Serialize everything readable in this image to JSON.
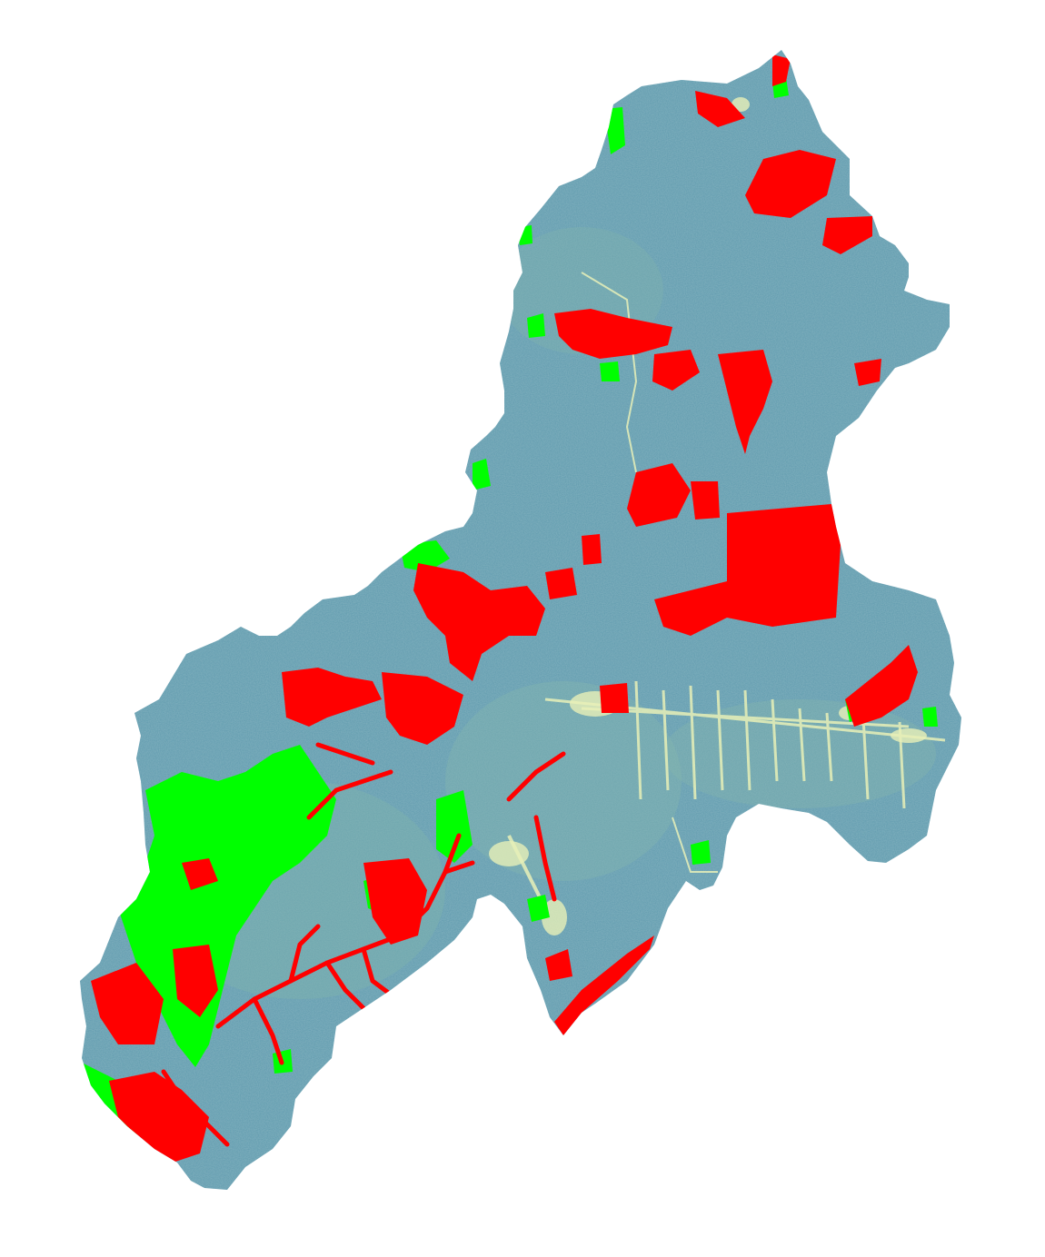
{
  "map": {
    "type": "land-cover-change raster",
    "legend_shown": false,
    "title_shown": false,
    "colors": {
      "background": "#ffffff",
      "base_land": "#5f9aae",
      "base_land_light": "#7fb0b4",
      "urban_light": "#e8f0b8",
      "class_red": "#ff0000",
      "class_green": "#00ff00"
    }
  }
}
